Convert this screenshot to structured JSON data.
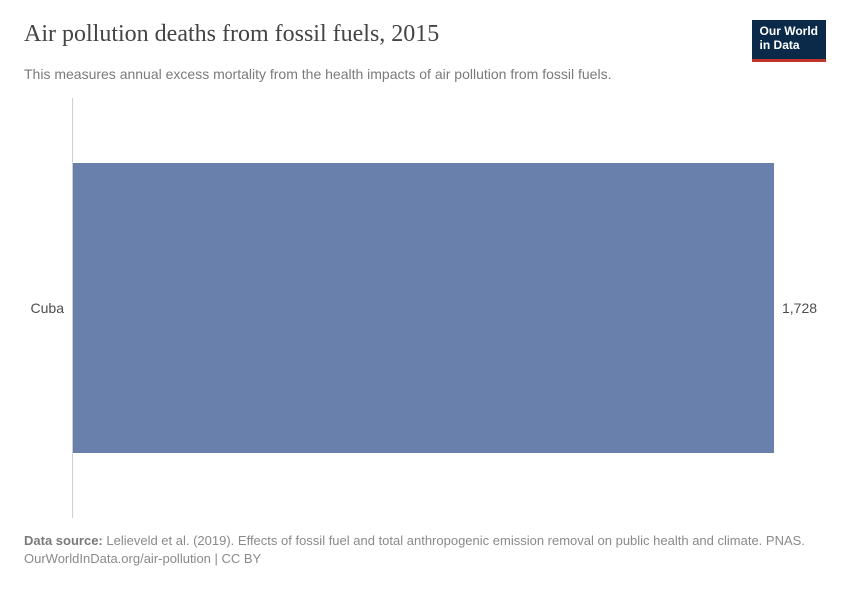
{
  "header": {
    "title": "Air pollution deaths from fossil fuels, 2015",
    "subtitle": "This measures annual excess mortality from the health impacts of air pollution from fossil fuels.",
    "logo_line1": "Our World",
    "logo_line2": "in Data"
  },
  "chart": {
    "type": "bar-horizontal",
    "background_color": "#ffffff",
    "axis_line_color": "#cfcfcf",
    "bars": [
      {
        "category": "Cuba",
        "value": 1728,
        "value_label": "1,728",
        "color": "#6a80ac",
        "width_fraction": 1.0
      }
    ],
    "label_fontsize": 14,
    "label_color": "#4d4d4d"
  },
  "footer": {
    "source_label": "Data source:",
    "source_text": "Lelieveld et al. (2019). Effects of fossil fuel and total anthropogenic emission removal on public health and climate. PNAS.",
    "link_line": "OurWorldInData.org/air-pollution | CC BY"
  },
  "logo_colors": {
    "background": "#0b2a4a",
    "underline": "#c0342c",
    "text": "#ffffff"
  }
}
